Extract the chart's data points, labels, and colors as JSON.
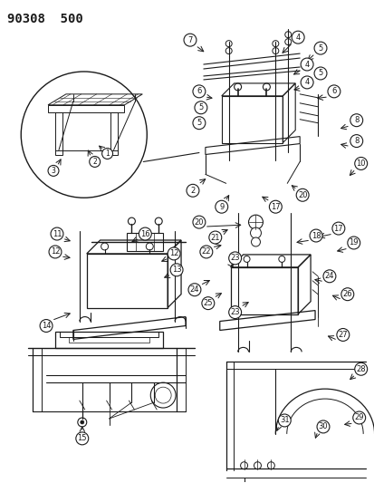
{
  "title": "90308  500",
  "bg_color": "#ffffff",
  "line_color": "#1a1a1a",
  "fig_width": 4.14,
  "fig_height": 5.33,
  "dpi": 100
}
